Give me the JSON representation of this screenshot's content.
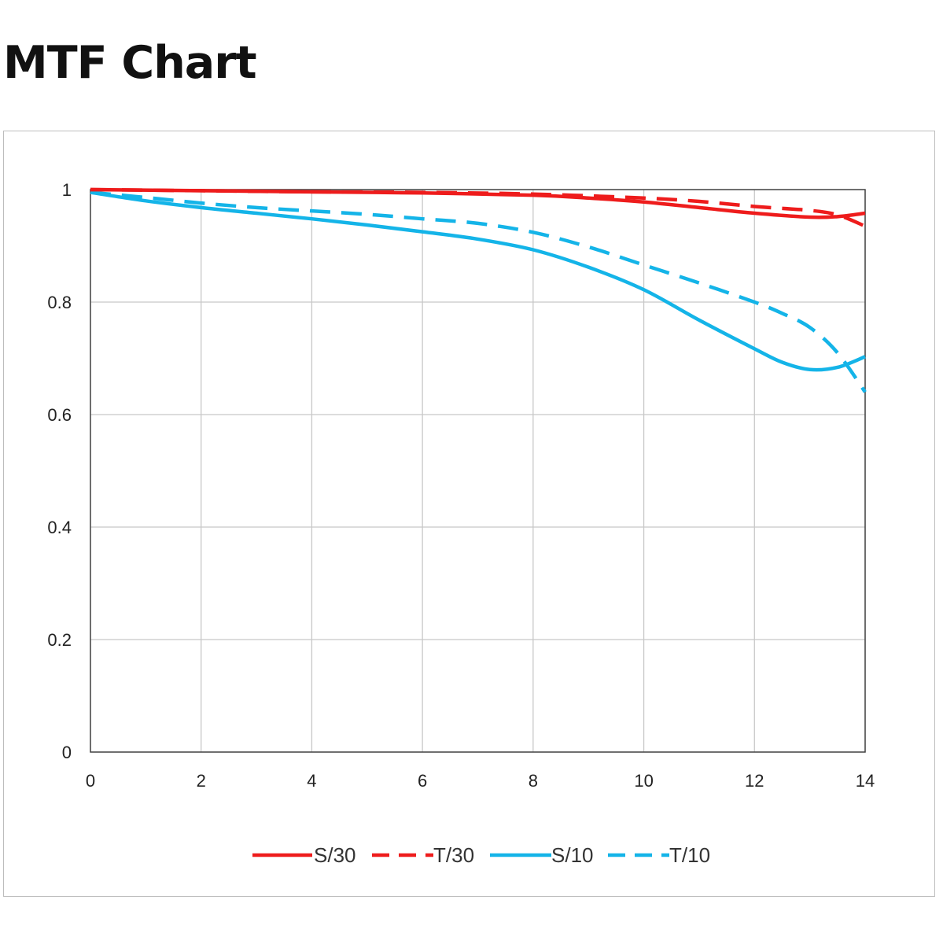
{
  "title": "MTF Chart",
  "colors": {
    "red": "#ee1c1c",
    "blue": "#14b4e8",
    "grid": "#c8c8c8",
    "axis": "#444444"
  },
  "chart_data": {
    "type": "line",
    "title": "MTF Chart",
    "xlabel": "",
    "ylabel": "",
    "xlim": [
      0,
      14
    ],
    "ylim": [
      0,
      1
    ],
    "xticks": [
      0,
      2,
      4,
      6,
      8,
      10,
      12,
      14
    ],
    "yticks": [
      {
        "value": 0,
        "label": "0"
      },
      {
        "value": 0.2,
        "label": "0.2"
      },
      {
        "value": 0.4,
        "label": "0.4"
      },
      {
        "value": 0.6,
        "label": "0.6"
      },
      {
        "value": 0.8,
        "label": "0.8"
      },
      {
        "value": 1,
        "label": "1"
      }
    ],
    "grid": true,
    "legend_position": "bottom",
    "series": [
      {
        "name": "S/30",
        "color": "#ee1c1c",
        "style": "solid",
        "x": [
          0,
          2,
          4,
          6,
          8,
          9,
          10,
          11,
          12,
          13,
          13.5,
          14
        ],
        "y": [
          1.0,
          0.998,
          0.996,
          0.994,
          0.99,
          0.985,
          0.978,
          0.968,
          0.958,
          0.951,
          0.952,
          0.958
        ]
      },
      {
        "name": "T/30",
        "color": "#ee1c1c",
        "style": "dashed",
        "x": [
          0,
          2,
          4,
          6,
          8,
          10,
          11,
          12,
          13,
          13.5,
          14
        ],
        "y": [
          1.0,
          0.998,
          0.996,
          0.995,
          0.992,
          0.985,
          0.979,
          0.97,
          0.963,
          0.955,
          0.935
        ]
      },
      {
        "name": "S/10",
        "color": "#14b4e8",
        "style": "solid",
        "x": [
          0,
          1,
          2,
          3,
          4,
          5,
          6,
          7,
          8,
          9,
          10,
          11,
          12,
          12.5,
          13,
          13.5,
          14
        ],
        "y": [
          0.995,
          0.98,
          0.968,
          0.958,
          0.948,
          0.937,
          0.925,
          0.912,
          0.893,
          0.862,
          0.822,
          0.768,
          0.717,
          0.693,
          0.68,
          0.684,
          0.703
        ]
      },
      {
        "name": "T/10",
        "color": "#14b4e8",
        "style": "dashed",
        "x": [
          0,
          1,
          2,
          3,
          4,
          5,
          6,
          7,
          8,
          9,
          10,
          11,
          12,
          12.5,
          13,
          13.5,
          14
        ],
        "y": [
          0.995,
          0.986,
          0.976,
          0.968,
          0.962,
          0.956,
          0.948,
          0.94,
          0.924,
          0.898,
          0.866,
          0.834,
          0.8,
          0.78,
          0.755,
          0.71,
          0.64
        ]
      }
    ]
  }
}
